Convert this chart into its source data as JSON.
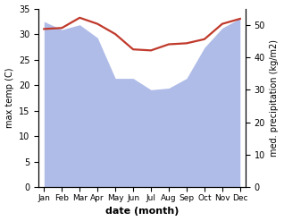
{
  "months": [
    "Jan",
    "Feb",
    "Mar",
    "Apr",
    "May",
    "Jun",
    "Jul",
    "Aug",
    "Sep",
    "Oct",
    "Nov",
    "Dec"
  ],
  "temperature": [
    31.0,
    31.2,
    33.2,
    32.0,
    30.0,
    27.0,
    26.8,
    28.0,
    28.2,
    29.0,
    32.0,
    33.0
  ],
  "precipitation": [
    51.0,
    48.5,
    50.0,
    46.0,
    33.5,
    33.5,
    30.0,
    30.5,
    33.5,
    43.0,
    49.0,
    52.0
  ],
  "temp_color": "#c0392b",
  "precip_color": "#b0bce8",
  "ylim_left": [
    0,
    35
  ],
  "ylim_right": [
    0,
    55
  ],
  "yticks_left": [
    0,
    5,
    10,
    15,
    20,
    25,
    30,
    35
  ],
  "yticks_right": [
    0,
    10,
    20,
    30,
    40,
    50
  ],
  "xlabel": "date (month)",
  "ylabel_left": "max temp (C)",
  "ylabel_right": "med. precipitation (kg/m2)",
  "temp_linewidth": 1.6,
  "bg_color": "#ffffff"
}
